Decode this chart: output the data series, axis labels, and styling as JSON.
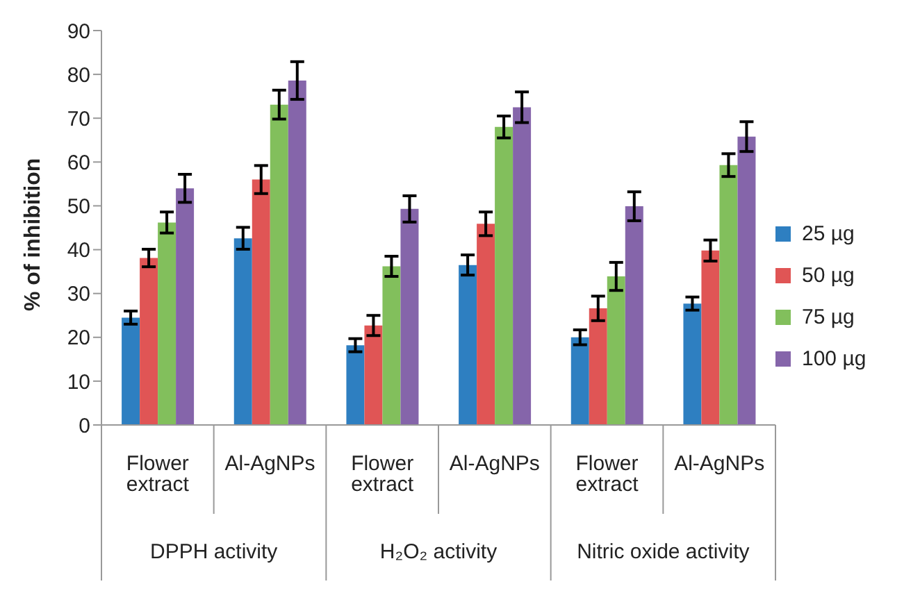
{
  "chart_data": {
    "type": "bar",
    "ylabel": "% of inhibition",
    "categories": [
      "Flower extract",
      "Al-AgNPs",
      "Flower extract",
      "Al-AgNPs",
      "Flower extract",
      "Al-AgNPs"
    ],
    "annotations": [
      "DPPH activity",
      "H₂O₂ activity",
      "Nitric oxide activity"
    ],
    "series": [
      {
        "name": "25 µg",
        "color": "#2e7fc1",
        "values": [
          24.5,
          42.6,
          18.2,
          36.5,
          20,
          27.7
        ],
        "errors": [
          1.5,
          2.5,
          1.5,
          2.3,
          1.7,
          1.5
        ]
      },
      {
        "name": "50 µg",
        "color": "#e05555",
        "values": [
          38.1,
          56,
          22.7,
          45.9,
          26.6,
          39.8
        ],
        "errors": [
          2,
          3.2,
          2.3,
          2.7,
          2.8,
          2.4
        ]
      },
      {
        "name": "75 µg",
        "color": "#82bf5c",
        "values": [
          46.2,
          73.1,
          36.2,
          68,
          33.9,
          59.3
        ],
        "errors": [
          2.4,
          3.3,
          2.3,
          2.5,
          3.2,
          2.6
        ]
      },
      {
        "name": "100 µg",
        "color": "#8565aa",
        "values": [
          54,
          78.6,
          49.3,
          72.5,
          49.9,
          65.8
        ],
        "errors": [
          3.2,
          4.3,
          3,
          3.5,
          3.3,
          3.4
        ]
      }
    ],
    "ylim": [
      0,
      90
    ],
    "yticks": [
      0,
      10,
      20,
      30,
      40,
      50,
      60,
      70,
      80,
      90
    ],
    "legend": "right"
  }
}
